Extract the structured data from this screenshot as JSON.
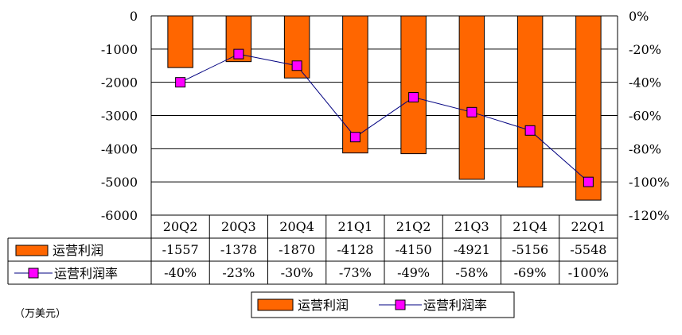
{
  "chart_data": {
    "type": "bar",
    "categories": [
      "20Q2",
      "20Q3",
      "20Q4",
      "21Q1",
      "21Q2",
      "21Q3",
      "21Q4",
      "22Q1"
    ],
    "series": [
      {
        "name": "运营利润",
        "kind": "bar",
        "axis": "left",
        "values": [
          -1557,
          -1378,
          -1870,
          -4128,
          -4150,
          -4921,
          -5156,
          -5548
        ],
        "labels": [
          "-1557",
          "-1378",
          "-1870",
          "-4128",
          "-4150",
          "-4921",
          "-5156",
          "-5548"
        ],
        "color": "#FF6600"
      },
      {
        "name": "运营利润率",
        "kind": "line",
        "axis": "right",
        "values": [
          -40,
          -23,
          -30,
          -73,
          -49,
          -58,
          -69,
          -100
        ],
        "labels": [
          "-40%",
          "-23%",
          "-30%",
          "-73%",
          "-49%",
          "-58%",
          "-69%",
          "-100%"
        ],
        "color": "#FF00FF",
        "line_color": "#000080"
      }
    ],
    "y_left": {
      "ylim": [
        -6000,
        0
      ],
      "ticks": [
        "0",
        "-1000",
        "-2000",
        "-3000",
        "-4000",
        "-5000",
        "-6000"
      ],
      "tick_values": [
        0,
        -1000,
        -2000,
        -3000,
        -4000,
        -5000,
        -6000
      ]
    },
    "y_right": {
      "ylim": [
        -120,
        0
      ],
      "ticks": [
        "0%",
        "-20%",
        "-40%",
        "-60%",
        "-80%",
        "-100%",
        "-120%"
      ],
      "tick_values": [
        0,
        -20,
        -40,
        -60,
        -80,
        -100,
        -120
      ]
    },
    "grid": true,
    "data_table": true,
    "legend": {
      "placement": "bottom",
      "entries": [
        "运营利润",
        "运营利润率"
      ]
    },
    "unit_note": "（万美元）"
  }
}
